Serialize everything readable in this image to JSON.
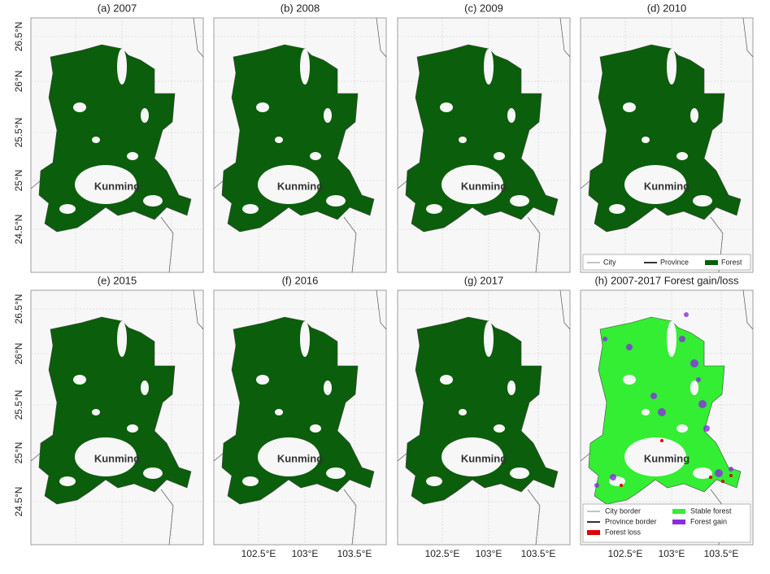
{
  "panels": [
    {
      "title": "(a) 2007",
      "city": "Kunming"
    },
    {
      "title": "(b) 2008",
      "city": "Kunming"
    },
    {
      "title": "(c) 2009",
      "city": "Kunming"
    },
    {
      "title": "(d) 2010",
      "city": "Kunming"
    },
    {
      "title": "(e) 2015",
      "city": "Kunming"
    },
    {
      "title": "(f) 2016",
      "city": "Kunming"
    },
    {
      "title": "(g) 2017",
      "city": "Kunming"
    },
    {
      "title": "(h) 2007-2017 Forest gain/loss",
      "city": "Kunming"
    }
  ],
  "y_axis_labels": [
    "26.5°N",
    "26°N",
    "25.5°N",
    "25°N",
    "24.5°N"
  ],
  "x_axis_labels": [
    "102.5°E",
    "103°E",
    "103.5°E"
  ],
  "legend_forest": [
    "City",
    "Province",
    "Forest"
  ],
  "legend_change": [
    "City border",
    "Province border",
    "Forest loss",
    "Stable forest",
    "Forest gain"
  ]
}
